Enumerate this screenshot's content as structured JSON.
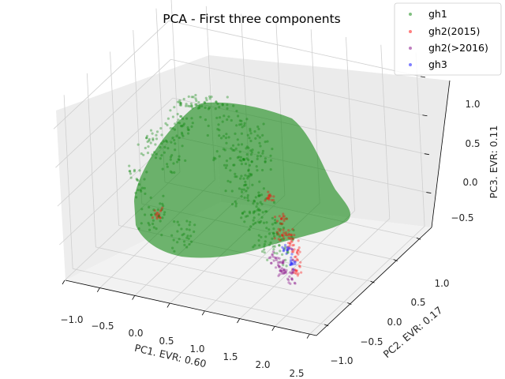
{
  "chart_data": {
    "type": "scatter",
    "title": "PCA - First three components",
    "xlabel": "PC1. EVR: 0.60",
    "ylabel": "PC2. EVR: 0.17",
    "zlabel": "PC3. EVR: 0.11",
    "x_ticks": [
      "−1.0",
      "−0.5",
      "0.0",
      "0.5",
      "1.0",
      "1.5",
      "2.0",
      "2.5"
    ],
    "y_ticks": [
      "−1.0",
      "−0.5",
      "0.0",
      "0.5",
      "1.0"
    ],
    "z_ticks": [
      "−0.5",
      "0.0",
      "0.5",
      "1.0"
    ],
    "xlim": [
      -1.05,
      2.55
    ],
    "ylim": [
      -1.25,
      1.25
    ],
    "zlim": [
      -0.95,
      1.3
    ],
    "grid": true,
    "legend_position": "top-right",
    "series": [
      {
        "name": "gh1",
        "color": "#008000",
        "points": [
          [
            -0.5,
            0.0,
            0.2
          ],
          [
            -0.2,
            0.1,
            0.5
          ],
          [
            0.0,
            0.2,
            0.7
          ],
          [
            0.2,
            0.3,
            0.9
          ],
          [
            0.4,
            0.2,
            0.6
          ],
          [
            0.6,
            0.0,
            0.3
          ],
          [
            0.8,
            -0.1,
            0.1
          ],
          [
            1.0,
            -0.2,
            -0.1
          ],
          [
            1.2,
            -0.3,
            -0.2
          ],
          [
            1.4,
            -0.4,
            -0.3
          ],
          [
            1.6,
            -0.5,
            -0.4
          ],
          [
            -0.7,
            -0.2,
            -0.2
          ],
          [
            -0.3,
            -0.3,
            -0.5
          ],
          [
            0.1,
            -0.4,
            -0.6
          ],
          [
            0.3,
            0.4,
            1.0
          ],
          [
            0.5,
            0.5,
            1.1
          ],
          [
            -0.1,
            0.3,
            0.8
          ],
          [
            0.7,
            0.3,
            0.4
          ],
          [
            0.9,
            0.1,
            0.2
          ],
          [
            -0.4,
            0.2,
            0.0
          ]
        ]
      },
      {
        "name": "gh2(2015)",
        "color": "#ff0000",
        "points": [
          [
            1.3,
            -0.2,
            0.0
          ],
          [
            1.5,
            -0.3,
            -0.2
          ],
          [
            1.7,
            -0.4,
            -0.3
          ],
          [
            1.9,
            -0.6,
            -0.4
          ],
          [
            2.0,
            -0.7,
            -0.5
          ],
          [
            1.8,
            -0.5,
            -0.35
          ],
          [
            1.6,
            -0.45,
            -0.3
          ],
          [
            -0.2,
            -0.4,
            -0.4
          ]
        ]
      },
      {
        "name": "gh2(>2016)",
        "color": "#800080",
        "points": [
          [
            1.6,
            -0.6,
            -0.5
          ],
          [
            1.8,
            -0.7,
            -0.6
          ],
          [
            2.0,
            -0.8,
            -0.65
          ],
          [
            2.2,
            -0.9,
            -0.7
          ],
          [
            1.9,
            -0.75,
            -0.6
          ],
          [
            1.7,
            -0.65,
            -0.55
          ]
        ]
      },
      {
        "name": "gh3",
        "color": "#0000ff",
        "points": [
          [
            1.7,
            -0.5,
            -0.45
          ],
          [
            1.85,
            -0.6,
            -0.5
          ]
        ]
      }
    ]
  }
}
